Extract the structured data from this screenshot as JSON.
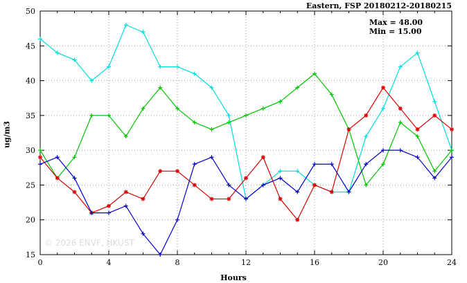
{
  "chart_data": {
    "type": "line",
    "title": "Eastern, FSP 20180212-20180215",
    "xlabel": "Hours",
    "ylabel": "ug/m3",
    "max_label": "Max = 48.00",
    "min_label": "Min = 15.00",
    "watermark": "© 2026 ENVF, HKUST",
    "xlim": [
      0,
      24
    ],
    "ylim": [
      15,
      50
    ],
    "xticks": [
      0,
      4,
      8,
      12,
      16,
      20,
      24
    ],
    "yticks": [
      15,
      20,
      25,
      30,
      35,
      40,
      45,
      50
    ],
    "grid": true,
    "x": [
      0,
      1,
      2,
      3,
      4,
      5,
      6,
      7,
      8,
      9,
      10,
      11,
      12,
      13,
      14,
      15,
      16,
      17,
      18,
      19,
      20,
      21,
      22,
      23,
      24
    ],
    "series": [
      {
        "name": "series-cyan",
        "color": "#00dcdc",
        "marker": "plus",
        "values": [
          46,
          44,
          43,
          40,
          42,
          48,
          47,
          42,
          42,
          41,
          39,
          35,
          23,
          25,
          27,
          27,
          25,
          24,
          24,
          32,
          36,
          42,
          44,
          37,
          30
        ]
      },
      {
        "name": "series-green",
        "color": "#00c400",
        "marker": "plus",
        "values": [
          30,
          26,
          29,
          35,
          35,
          32,
          36,
          39,
          36,
          34,
          33,
          34,
          35,
          36,
          37,
          39,
          41,
          38,
          33,
          25,
          28,
          34,
          32,
          27,
          30
        ]
      },
      {
        "name": "series-red",
        "color": "#dd0000",
        "marker": "asterisk",
        "values": [
          29,
          26,
          24,
          21,
          22,
          24,
          23,
          27,
          27,
          25,
          23,
          23,
          26,
          29,
          23,
          20,
          25,
          24,
          33,
          35,
          39,
          36,
          33,
          35,
          33
        ]
      },
      {
        "name": "series-blue",
        "color": "#0000cc",
        "marker": "plus",
        "values": [
          28,
          29,
          26,
          21,
          21,
          22,
          18,
          15,
          20,
          28,
          29,
          25,
          23,
          25,
          26,
          24,
          28,
          28,
          24,
          28,
          30,
          30,
          29,
          26,
          29
        ]
      }
    ]
  }
}
